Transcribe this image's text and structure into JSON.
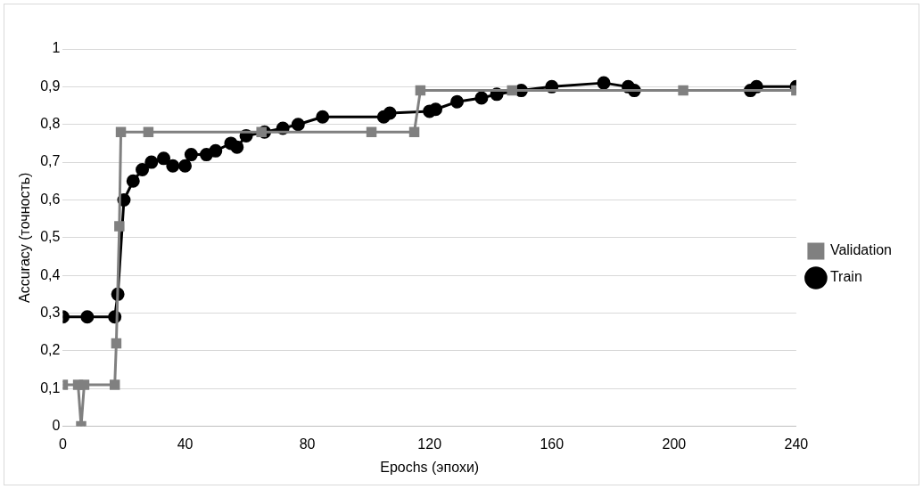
{
  "chart_data": {
    "type": "line",
    "xlabel": "Epochs (эпохи)",
    "ylabel": "Accuracy (точность)",
    "xlim": [
      0,
      240
    ],
    "xticks": [
      0,
      40,
      80,
      120,
      160,
      200,
      240
    ],
    "ylim": [
      0,
      1
    ],
    "yticks": [
      0,
      {
        "value": 0.1,
        "label": "0,1"
      },
      {
        "value": 0.2,
        "label": "0,2"
      },
      {
        "value": 0.3,
        "label": "0,3"
      },
      {
        "value": 0.4,
        "label": "0,4"
      },
      {
        "value": 0.5,
        "label": "0,5"
      },
      {
        "value": 0.6,
        "label": "0,6"
      },
      {
        "value": 0.7,
        "label": "0,7"
      },
      {
        "value": 0.8,
        "label": "0,8"
      },
      {
        "value": 0.9,
        "label": "0,9"
      },
      1
    ],
    "grid": "y",
    "legend": "right",
    "series": [
      {
        "name": "Train",
        "color": "#000000",
        "marker": "circle",
        "x": [
          0,
          8,
          17,
          18,
          20,
          23,
          26,
          29,
          33,
          36,
          40,
          42,
          47,
          50,
          55,
          57,
          60,
          66,
          72,
          77,
          85,
          105,
          107,
          120,
          122,
          129,
          137,
          142,
          150,
          160,
          177,
          185,
          187,
          225,
          227,
          240
        ],
        "values": [
          0.29,
          0.29,
          0.29,
          0.35,
          0.6,
          0.65,
          0.68,
          0.7,
          0.71,
          0.69,
          0.69,
          0.72,
          0.72,
          0.73,
          0.75,
          0.74,
          0.77,
          0.78,
          0.79,
          0.8,
          0.82,
          0.82,
          0.83,
          0.835,
          0.84,
          0.86,
          0.87,
          0.88,
          0.89,
          0.9,
          0.91,
          0.9,
          0.89,
          0.89,
          0.9,
          0.9
        ]
      },
      {
        "name": "Validation",
        "color": "#808080",
        "marker": "square",
        "x": [
          0,
          5,
          6,
          7,
          17,
          17.5,
          18.5,
          19,
          28,
          65,
          101,
          115,
          117,
          147,
          203,
          240
        ],
        "values": [
          0.11,
          0.11,
          0,
          0.11,
          0.11,
          0.22,
          0.53,
          0.78,
          0.78,
          0.78,
          0.78,
          0.78,
          0.89,
          0.89,
          0.89,
          0.89
        ]
      }
    ]
  }
}
